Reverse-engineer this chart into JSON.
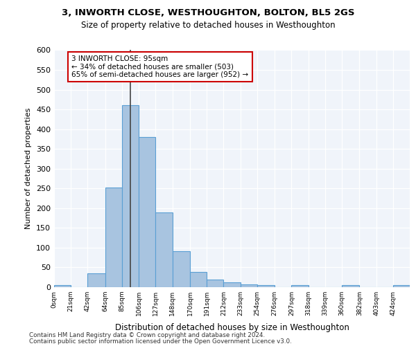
{
  "title_line1": "3, INWORTH CLOSE, WESTHOUGHTON, BOLTON, BL5 2GS",
  "title_line2": "Size of property relative to detached houses in Westhoughton",
  "xlabel": "Distribution of detached houses by size in Westhoughton",
  "ylabel": "Number of detached properties",
  "bar_color": "#a8c4e0",
  "bar_edge_color": "#5a9fd4",
  "background_color": "#f0f4fa",
  "grid_color": "#ffffff",
  "bin_labels": [
    "0sqm",
    "21sqm",
    "42sqm",
    "64sqm",
    "85sqm",
    "106sqm",
    "127sqm",
    "148sqm",
    "170sqm",
    "191sqm",
    "212sqm",
    "233sqm",
    "254sqm",
    "276sqm",
    "297sqm",
    "318sqm",
    "339sqm",
    "360sqm",
    "382sqm",
    "403sqm",
    "424sqm"
  ],
  "bar_values": [
    5,
    0,
    35,
    252,
    460,
    380,
    190,
    91,
    38,
    19,
    12,
    7,
    5,
    0,
    5,
    0,
    0,
    5,
    0,
    0,
    5
  ],
  "bin_edges": [
    0,
    21,
    42,
    64,
    85,
    106,
    127,
    148,
    170,
    191,
    212,
    233,
    254,
    276,
    297,
    318,
    339,
    360,
    382,
    403,
    424,
    445
  ],
  "ylim": [
    0,
    600
  ],
  "yticks": [
    0,
    50,
    100,
    150,
    200,
    250,
    300,
    350,
    400,
    450,
    500,
    550,
    600
  ],
  "annotation_text": "3 INWORTH CLOSE: 95sqm\n← 34% of detached houses are smaller (503)\n65% of semi-detached houses are larger (952) →",
  "annotation_box_color": "#ffffff",
  "annotation_box_edge_color": "#cc0000",
  "property_line_x": 95,
  "footer_line1": "Contains HM Land Registry data © Crown copyright and database right 2024.",
  "footer_line2": "Contains public sector information licensed under the Open Government Licence v3.0."
}
